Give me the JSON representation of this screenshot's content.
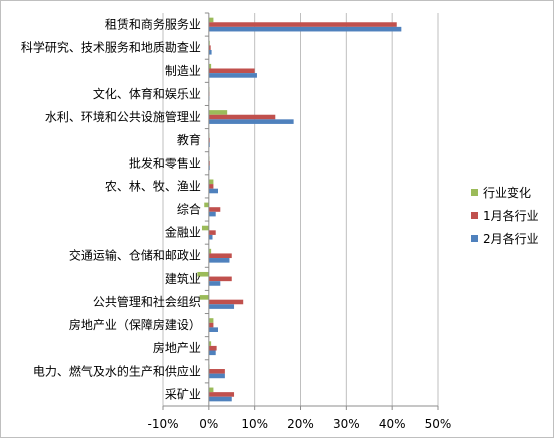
{
  "chart_data": {
    "type": "bar",
    "orientation": "horizontal",
    "categories": [
      "租赁和商务服务业",
      "科学研究、技术服务和地质勘查业",
      "制造业",
      "文化、体育和娱乐业",
      "水利、环境和公共设施管理业",
      "教育",
      "批发和零售业",
      "农、林、牧、渔业",
      "综合",
      "金融业",
      "交通运输、仓储和邮政业",
      "建筑业",
      "公共管理和社会组织",
      "房地产业（保障房建设）",
      "房地产业",
      "电力、燃气及水的生产和供应业",
      "采矿业"
    ],
    "series": [
      {
        "name": "行业变化",
        "color": "#9bbb59",
        "values": [
          1.0,
          0.2,
          0.5,
          0.0,
          4.0,
          0.0,
          0.0,
          1.0,
          -1.0,
          -1.5,
          0.5,
          -2.5,
          -2.0,
          1.0,
          0.5,
          0.0,
          1.0
        ]
      },
      {
        "name": "1月各行业",
        "color": "#c0504d",
        "values": [
          41.0,
          0.4,
          10.0,
          0.1,
          14.5,
          0.2,
          0.2,
          1.0,
          2.5,
          1.5,
          5.0,
          5.0,
          7.5,
          1.0,
          1.7,
          3.5,
          5.5
        ]
      },
      {
        "name": "2月各行业",
        "color": "#4f81bd",
        "values": [
          42.0,
          0.6,
          10.5,
          0.1,
          18.5,
          0.2,
          0.2,
          2.0,
          1.5,
          0.8,
          4.5,
          2.5,
          5.5,
          2.0,
          1.5,
          3.5,
          5.0
        ]
      }
    ],
    "xlim": [
      -10,
      50
    ],
    "xticks": [
      -10,
      0,
      10,
      20,
      30,
      40,
      50
    ],
    "xtick_labels": [
      "-10%",
      "0%",
      "10%",
      "20%",
      "30%",
      "40%",
      "50%"
    ],
    "grid": "vertical",
    "legend_position": "right"
  }
}
